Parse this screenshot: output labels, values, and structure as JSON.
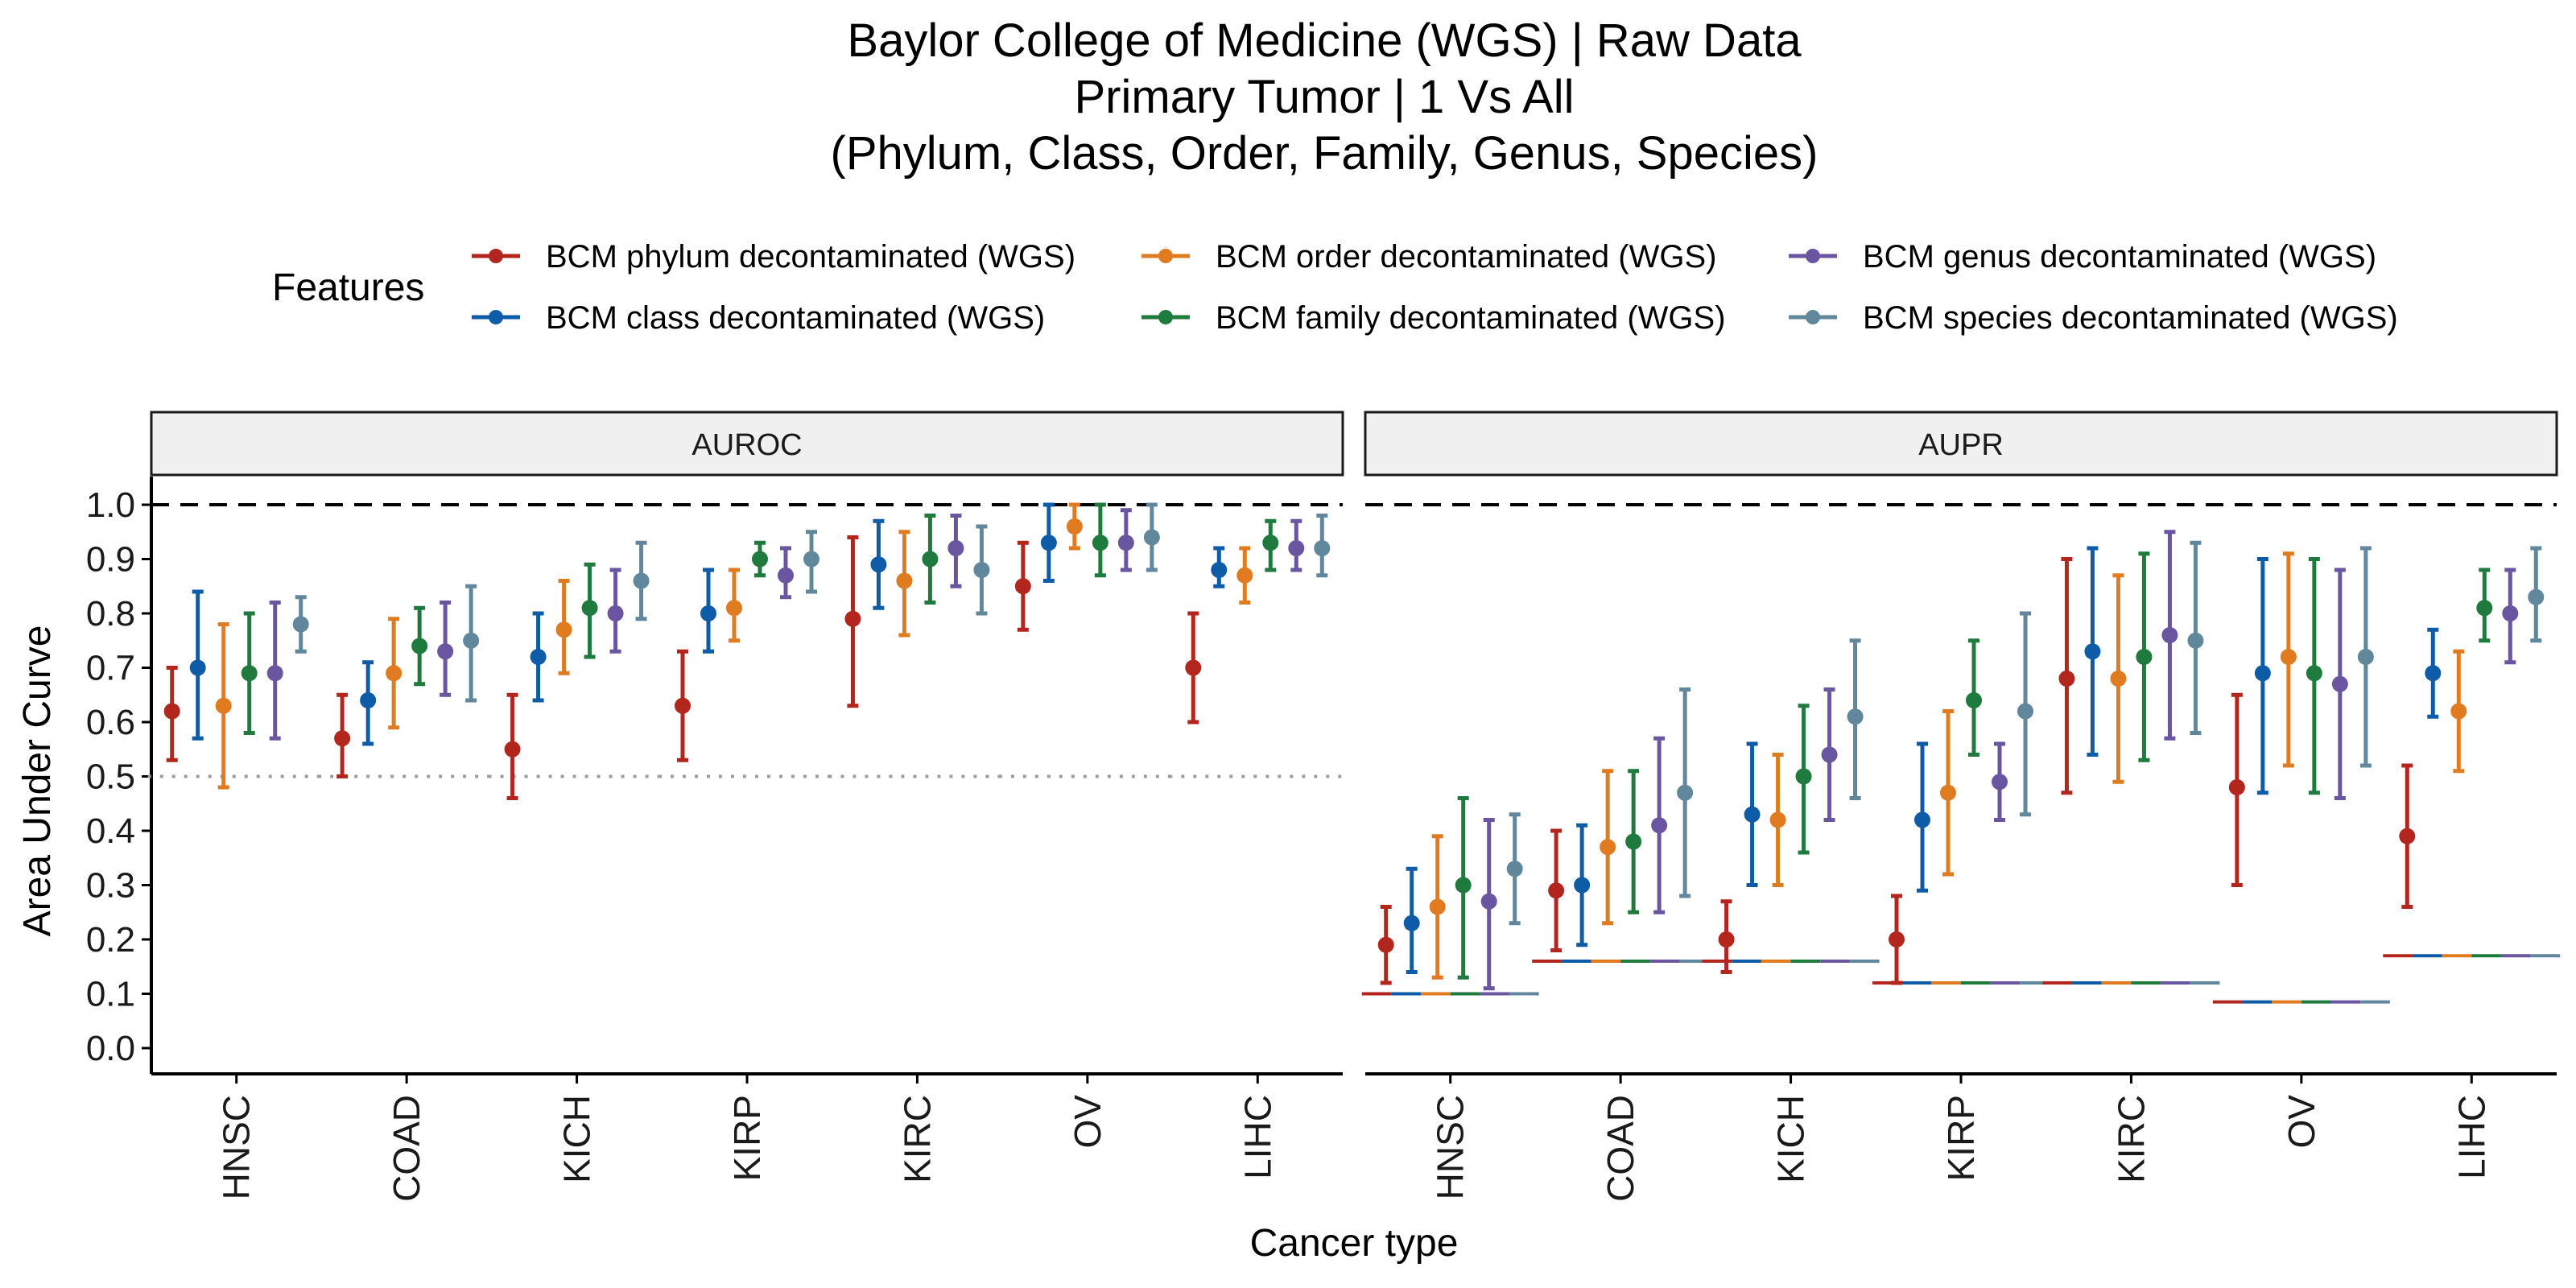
{
  "chart_data": {
    "type": "errorbar",
    "title_lines": [
      "Baylor College of Medicine (WGS) | Raw Data",
      "Primary Tumor | 1 Vs All",
      "(Phylum, Class, Order, Family, Genus, Species)"
    ],
    "xlabel": "Cancer type",
    "ylabel": "Area Under Curve",
    "ylim": [
      0,
      1
    ],
    "yticks": [
      "0.0",
      "0.1",
      "0.2",
      "0.3",
      "0.4",
      "0.5",
      "0.6",
      "0.7",
      "0.8",
      "0.9",
      "1.0"
    ],
    "categories": [
      "HNSC",
      "COAD",
      "KICH",
      "KIRP",
      "KIRC",
      "OV",
      "LIHC"
    ],
    "legend": {
      "title": "Features",
      "position": "top"
    },
    "series": [
      {
        "name": "BCM phylum decontaminated (WGS)",
        "color": "#B2261E"
      },
      {
        "name": "BCM class decontaminated (WGS)",
        "color": "#0E5CA8"
      },
      {
        "name": "BCM order decontaminated (WGS)",
        "color": "#E07B20"
      },
      {
        "name": "BCM family decontaminated (WGS)",
        "color": "#1F7A3E"
      },
      {
        "name": "BCM genus decontaminated (WGS)",
        "color": "#6A55A0"
      },
      {
        "name": "BCM species decontaminated (WGS)",
        "color": "#60879C"
      }
    ],
    "panels": [
      {
        "label": "AUROC",
        "reference_line": 0.5,
        "values": [
          [
            [
              0.62,
              0.53,
              0.7
            ],
            [
              0.57,
              0.5,
              0.65
            ],
            [
              0.55,
              0.46,
              0.65
            ],
            [
              0.63,
              0.53,
              0.73
            ],
            [
              0.79,
              0.63,
              0.94
            ],
            [
              0.85,
              0.77,
              0.93
            ],
            [
              0.7,
              0.6,
              0.8
            ]
          ],
          [
            [
              0.7,
              0.57,
              0.84
            ],
            [
              0.64,
              0.56,
              0.71
            ],
            [
              0.72,
              0.64,
              0.8
            ],
            [
              0.8,
              0.73,
              0.88
            ],
            [
              0.89,
              0.81,
              0.97
            ],
            [
              0.93,
              0.86,
              1.0
            ],
            [
              0.88,
              0.85,
              0.92
            ]
          ],
          [
            [
              0.63,
              0.48,
              0.78
            ],
            [
              0.69,
              0.59,
              0.79
            ],
            [
              0.77,
              0.69,
              0.86
            ],
            [
              0.81,
              0.75,
              0.88
            ],
            [
              0.86,
              0.76,
              0.95
            ],
            [
              0.96,
              0.92,
              1.0
            ],
            [
              0.87,
              0.82,
              0.92
            ]
          ],
          [
            [
              0.69,
              0.58,
              0.8
            ],
            [
              0.74,
              0.67,
              0.81
            ],
            [
              0.81,
              0.72,
              0.89
            ],
            [
              0.9,
              0.87,
              0.93
            ],
            [
              0.9,
              0.82,
              0.98
            ],
            [
              0.93,
              0.87,
              1.0
            ],
            [
              0.93,
              0.88,
              0.97
            ]
          ],
          [
            [
              0.69,
              0.57,
              0.82
            ],
            [
              0.73,
              0.65,
              0.82
            ],
            [
              0.8,
              0.73,
              0.88
            ],
            [
              0.87,
              0.83,
              0.92
            ],
            [
              0.92,
              0.85,
              0.98
            ],
            [
              0.93,
              0.88,
              0.99
            ],
            [
              0.92,
              0.88,
              0.97
            ]
          ],
          [
            [
              0.78,
              0.73,
              0.83
            ],
            [
              0.75,
              0.64,
              0.85
            ],
            [
              0.86,
              0.79,
              0.93
            ],
            [
              0.9,
              0.84,
              0.95
            ],
            [
              0.88,
              0.8,
              0.96
            ],
            [
              0.94,
              0.88,
              1.0
            ],
            [
              0.92,
              0.87,
              0.98
            ]
          ]
        ]
      },
      {
        "label": "AUPR",
        "baselines": [
          0.1,
          0.16,
          0.16,
          0.12,
          0.12,
          0.085,
          0.17
        ],
        "values": [
          [
            [
              0.19,
              0.12,
              0.26
            ],
            [
              0.29,
              0.18,
              0.4
            ],
            [
              0.2,
              0.14,
              0.27
            ],
            [
              0.2,
              0.12,
              0.28
            ],
            [
              0.68,
              0.47,
              0.9
            ],
            [
              0.48,
              0.3,
              0.65
            ],
            [
              0.39,
              0.26,
              0.52
            ]
          ],
          [
            [
              0.23,
              0.14,
              0.33
            ],
            [
              0.3,
              0.19,
              0.41
            ],
            [
              0.43,
              0.3,
              0.56
            ],
            [
              0.42,
              0.29,
              0.56
            ],
            [
              0.73,
              0.54,
              0.92
            ],
            [
              0.69,
              0.47,
              0.9
            ],
            [
              0.69,
              0.61,
              0.77
            ]
          ],
          [
            [
              0.26,
              0.13,
              0.39
            ],
            [
              0.37,
              0.23,
              0.51
            ],
            [
              0.42,
              0.3,
              0.54
            ],
            [
              0.47,
              0.32,
              0.62
            ],
            [
              0.68,
              0.49,
              0.87
            ],
            [
              0.72,
              0.52,
              0.91
            ],
            [
              0.62,
              0.51,
              0.73
            ]
          ],
          [
            [
              0.3,
              0.13,
              0.46
            ],
            [
              0.38,
              0.25,
              0.51
            ],
            [
              0.5,
              0.36,
              0.63
            ],
            [
              0.64,
              0.54,
              0.75
            ],
            [
              0.72,
              0.53,
              0.91
            ],
            [
              0.69,
              0.47,
              0.9
            ],
            [
              0.81,
              0.75,
              0.88
            ]
          ],
          [
            [
              0.27,
              0.11,
              0.42
            ],
            [
              0.41,
              0.25,
              0.57
            ],
            [
              0.54,
              0.42,
              0.66
            ],
            [
              0.49,
              0.42,
              0.56
            ],
            [
              0.76,
              0.57,
              0.95
            ],
            [
              0.67,
              0.46,
              0.88
            ],
            [
              0.8,
              0.71,
              0.88
            ]
          ],
          [
            [
              0.33,
              0.23,
              0.43
            ],
            [
              0.47,
              0.28,
              0.66
            ],
            [
              0.61,
              0.46,
              0.75
            ],
            [
              0.62,
              0.43,
              0.8
            ],
            [
              0.75,
              0.58,
              0.93
            ],
            [
              0.72,
              0.52,
              0.92
            ],
            [
              0.83,
              0.75,
              0.92
            ]
          ]
        ]
      }
    ]
  }
}
